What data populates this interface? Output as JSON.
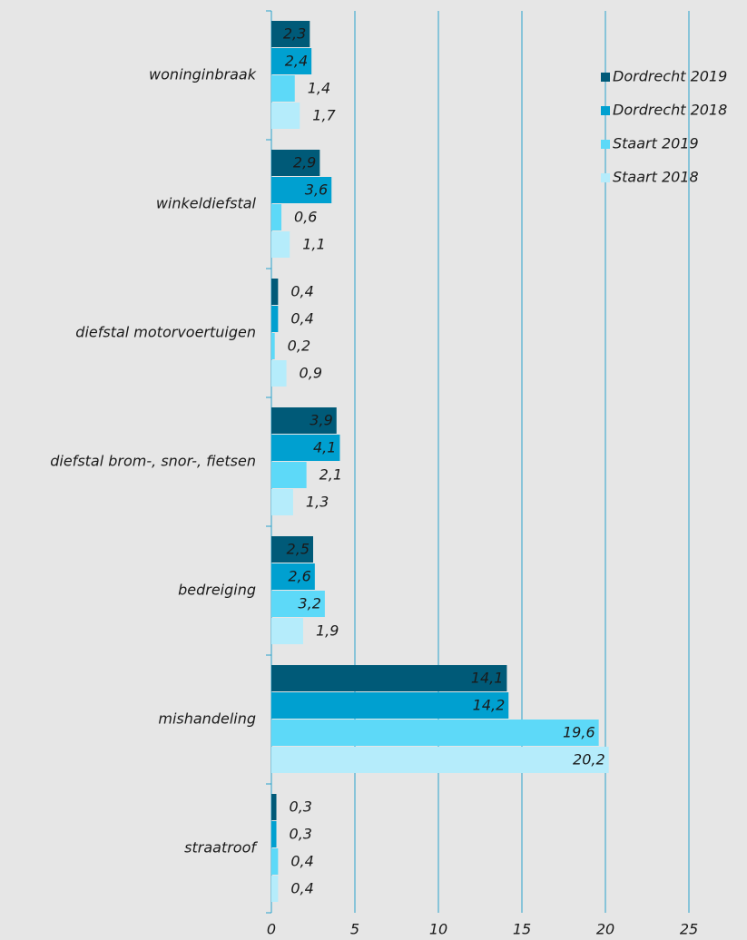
{
  "chart_data": {
    "type": "barh",
    "categories": [
      "woninginbraak",
      "winkeldiefstal",
      "diefstal motorvoertuigen",
      "diefstal brom-, snor-, fietsen",
      "bedreiging",
      "mishandeling",
      "straatroof"
    ],
    "series": [
      {
        "name": "Dordrecht 2019",
        "color": "#005a78",
        "values": [
          2.3,
          2.9,
          0.4,
          3.9,
          2.5,
          14.1,
          0.3
        ],
        "value_labels": [
          "2,3",
          "2,9",
          "0,4",
          "3,9",
          "2,5",
          "14,1",
          "0,3"
        ]
      },
      {
        "name": "Dordrecht 2018",
        "color": "#00a0d0",
        "values": [
          2.4,
          3.6,
          0.4,
          4.1,
          2.6,
          14.2,
          0.3
        ],
        "value_labels": [
          "2,4",
          "3,6",
          "0,4",
          "4,1",
          "2,6",
          "14,2",
          "0,3"
        ]
      },
      {
        "name": "Staart 2019",
        "color": "#5dd9f8",
        "values": [
          1.4,
          0.6,
          0.2,
          2.1,
          3.2,
          19.6,
          0.4
        ],
        "value_labels": [
          "1,4",
          "0,6",
          "0,2",
          "2,1",
          "3,2",
          "19,6",
          "0,4"
        ]
      },
      {
        "name": "Staart 2018",
        "color": "#b5ecfb",
        "values": [
          1.7,
          1.1,
          0.9,
          1.3,
          1.9,
          20.2,
          0.4
        ],
        "value_labels": [
          "1,7",
          "1,1",
          "0,9",
          "1,3",
          "1,9",
          "20,2",
          "0,4"
        ]
      }
    ],
    "xlim": [
      0,
      25
    ],
    "xticks": [
      0,
      5,
      10,
      15,
      20,
      25
    ],
    "grid": true,
    "legend": "top-right"
  }
}
